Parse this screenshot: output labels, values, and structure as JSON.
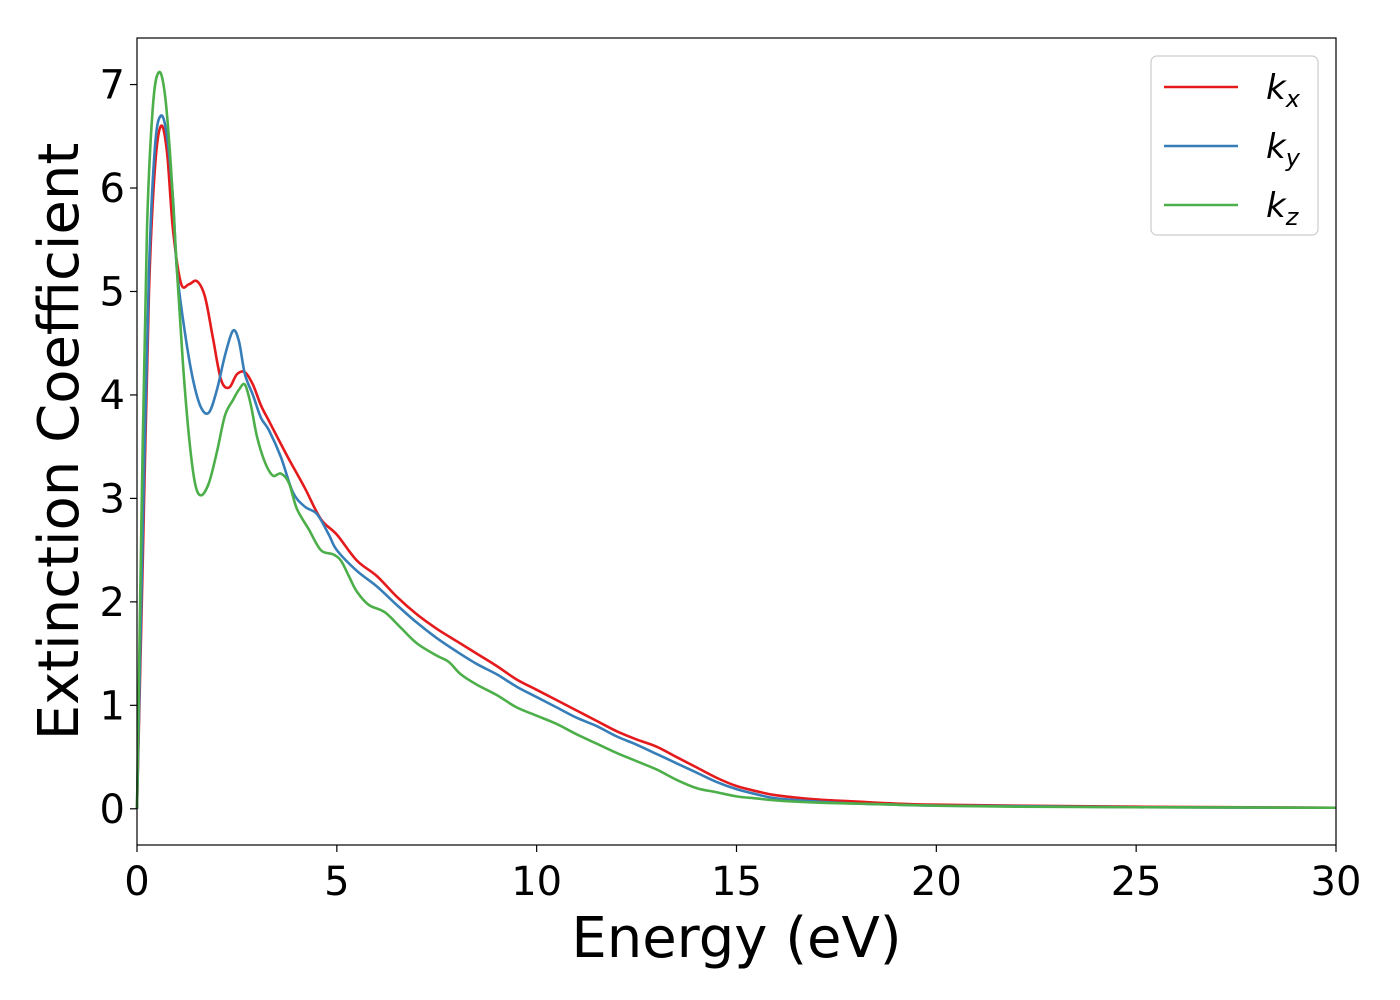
{
  "chart_data": {
    "type": "line",
    "title": "",
    "xlabel": "Energy (eV)",
    "ylabel": "Extinction Coefficient",
    "xlim": [
      0,
      30
    ],
    "ylim": [
      -0.35,
      7.45
    ],
    "xticks": [
      0,
      5,
      10,
      15,
      20,
      25,
      30
    ],
    "yticks": [
      0,
      1,
      2,
      3,
      4,
      5,
      6,
      7
    ],
    "grid": false,
    "legend_position": "top-right",
    "series": [
      {
        "name": "k",
        "subscript": "x",
        "color": "#e41a1c",
        "points": [
          [
            0,
            0
          ],
          [
            0.15,
            2.5
          ],
          [
            0.3,
            5.0
          ],
          [
            0.45,
            6.2
          ],
          [
            0.6,
            6.6
          ],
          [
            0.75,
            6.35
          ],
          [
            0.9,
            5.6
          ],
          [
            1.1,
            5.08
          ],
          [
            1.3,
            5.07
          ],
          [
            1.5,
            5.1
          ],
          [
            1.7,
            4.95
          ],
          [
            1.9,
            4.55
          ],
          [
            2.1,
            4.15
          ],
          [
            2.3,
            4.07
          ],
          [
            2.5,
            4.2
          ],
          [
            2.7,
            4.22
          ],
          [
            2.9,
            4.1
          ],
          [
            3.1,
            3.9
          ],
          [
            3.3,
            3.75
          ],
          [
            3.5,
            3.6
          ],
          [
            3.8,
            3.38
          ],
          [
            4.2,
            3.1
          ],
          [
            4.6,
            2.8
          ],
          [
            5.0,
            2.65
          ],
          [
            5.5,
            2.4
          ],
          [
            6.0,
            2.25
          ],
          [
            6.5,
            2.05
          ],
          [
            7.0,
            1.88
          ],
          [
            7.5,
            1.74
          ],
          [
            8.0,
            1.62
          ],
          [
            8.5,
            1.5
          ],
          [
            9.0,
            1.38
          ],
          [
            9.5,
            1.25
          ],
          [
            10,
            1.15
          ],
          [
            10.5,
            1.05
          ],
          [
            11,
            0.95
          ],
          [
            11.5,
            0.85
          ],
          [
            12,
            0.75
          ],
          [
            12.5,
            0.67
          ],
          [
            13,
            0.6
          ],
          [
            13.5,
            0.5
          ],
          [
            14,
            0.4
          ],
          [
            14.5,
            0.3
          ],
          [
            15,
            0.22
          ],
          [
            15.5,
            0.17
          ],
          [
            16,
            0.13
          ],
          [
            17,
            0.09
          ],
          [
            18,
            0.07
          ],
          [
            19,
            0.05
          ],
          [
            20,
            0.04
          ],
          [
            22,
            0.03
          ],
          [
            25,
            0.02
          ],
          [
            30,
            0.01
          ]
        ]
      },
      {
        "name": "k",
        "subscript": "y",
        "color": "#377eb8",
        "points": [
          [
            0,
            0
          ],
          [
            0.15,
            2.8
          ],
          [
            0.3,
            5.2
          ],
          [
            0.45,
            6.4
          ],
          [
            0.6,
            6.7
          ],
          [
            0.75,
            6.5
          ],
          [
            0.9,
            5.9
          ],
          [
            1.0,
            5.2
          ],
          [
            1.2,
            4.6
          ],
          [
            1.4,
            4.15
          ],
          [
            1.6,
            3.88
          ],
          [
            1.8,
            3.83
          ],
          [
            2.0,
            4.05
          ],
          [
            2.2,
            4.38
          ],
          [
            2.4,
            4.62
          ],
          [
            2.55,
            4.52
          ],
          [
            2.7,
            4.2
          ],
          [
            2.9,
            4.0
          ],
          [
            3.1,
            3.78
          ],
          [
            3.3,
            3.66
          ],
          [
            3.6,
            3.4
          ],
          [
            3.9,
            3.06
          ],
          [
            4.2,
            2.92
          ],
          [
            4.5,
            2.85
          ],
          [
            4.8,
            2.65
          ],
          [
            5.0,
            2.5
          ],
          [
            5.5,
            2.3
          ],
          [
            6.0,
            2.15
          ],
          [
            6.5,
            1.97
          ],
          [
            7.0,
            1.8
          ],
          [
            7.5,
            1.65
          ],
          [
            8.0,
            1.52
          ],
          [
            8.5,
            1.4
          ],
          [
            9.0,
            1.3
          ],
          [
            9.5,
            1.18
          ],
          [
            10,
            1.08
          ],
          [
            10.5,
            0.98
          ],
          [
            11,
            0.88
          ],
          [
            11.5,
            0.8
          ],
          [
            12,
            0.7
          ],
          [
            12.5,
            0.62
          ],
          [
            13,
            0.53
          ],
          [
            13.5,
            0.44
          ],
          [
            14,
            0.35
          ],
          [
            14.5,
            0.26
          ],
          [
            15,
            0.19
          ],
          [
            15.5,
            0.14
          ],
          [
            16,
            0.1
          ],
          [
            17,
            0.07
          ],
          [
            18,
            0.05
          ],
          [
            19,
            0.04
          ],
          [
            20,
            0.03
          ],
          [
            22,
            0.025
          ],
          [
            25,
            0.015
          ],
          [
            30,
            0.01
          ]
        ]
      },
      {
        "name": "k",
        "subscript": "z",
        "color": "#4daf4a",
        "points": [
          [
            0,
            0
          ],
          [
            0.12,
            3.0
          ],
          [
            0.25,
            5.6
          ],
          [
            0.4,
            6.8
          ],
          [
            0.55,
            7.12
          ],
          [
            0.7,
            6.9
          ],
          [
            0.85,
            6.2
          ],
          [
            1.0,
            5.2
          ],
          [
            1.15,
            4.3
          ],
          [
            1.3,
            3.6
          ],
          [
            1.45,
            3.15
          ],
          [
            1.6,
            3.03
          ],
          [
            1.8,
            3.15
          ],
          [
            2.0,
            3.45
          ],
          [
            2.2,
            3.8
          ],
          [
            2.4,
            3.95
          ],
          [
            2.55,
            4.05
          ],
          [
            2.7,
            4.1
          ],
          [
            2.85,
            3.9
          ],
          [
            3.0,
            3.6
          ],
          [
            3.2,
            3.35
          ],
          [
            3.4,
            3.22
          ],
          [
            3.6,
            3.24
          ],
          [
            3.8,
            3.15
          ],
          [
            4.0,
            2.9
          ],
          [
            4.3,
            2.7
          ],
          [
            4.6,
            2.5
          ],
          [
            4.9,
            2.46
          ],
          [
            5.1,
            2.4
          ],
          [
            5.3,
            2.25
          ],
          [
            5.5,
            2.1
          ],
          [
            5.8,
            1.97
          ],
          [
            6.2,
            1.9
          ],
          [
            6.6,
            1.75
          ],
          [
            7.0,
            1.6
          ],
          [
            7.5,
            1.48
          ],
          [
            7.8,
            1.42
          ],
          [
            8.1,
            1.3
          ],
          [
            8.5,
            1.2
          ],
          [
            9.0,
            1.1
          ],
          [
            9.5,
            0.98
          ],
          [
            10,
            0.9
          ],
          [
            10.5,
            0.82
          ],
          [
            11,
            0.72
          ],
          [
            11.5,
            0.63
          ],
          [
            12,
            0.54
          ],
          [
            12.5,
            0.46
          ],
          [
            13,
            0.38
          ],
          [
            13.5,
            0.28
          ],
          [
            14,
            0.2
          ],
          [
            14.5,
            0.16
          ],
          [
            15,
            0.12
          ],
          [
            15.5,
            0.1
          ],
          [
            16,
            0.08
          ],
          [
            17,
            0.06
          ],
          [
            18,
            0.05
          ],
          [
            19,
            0.04
          ],
          [
            20,
            0.03
          ],
          [
            22,
            0.02
          ],
          [
            25,
            0.015
          ],
          [
            30,
            0.01
          ]
        ]
      }
    ]
  }
}
